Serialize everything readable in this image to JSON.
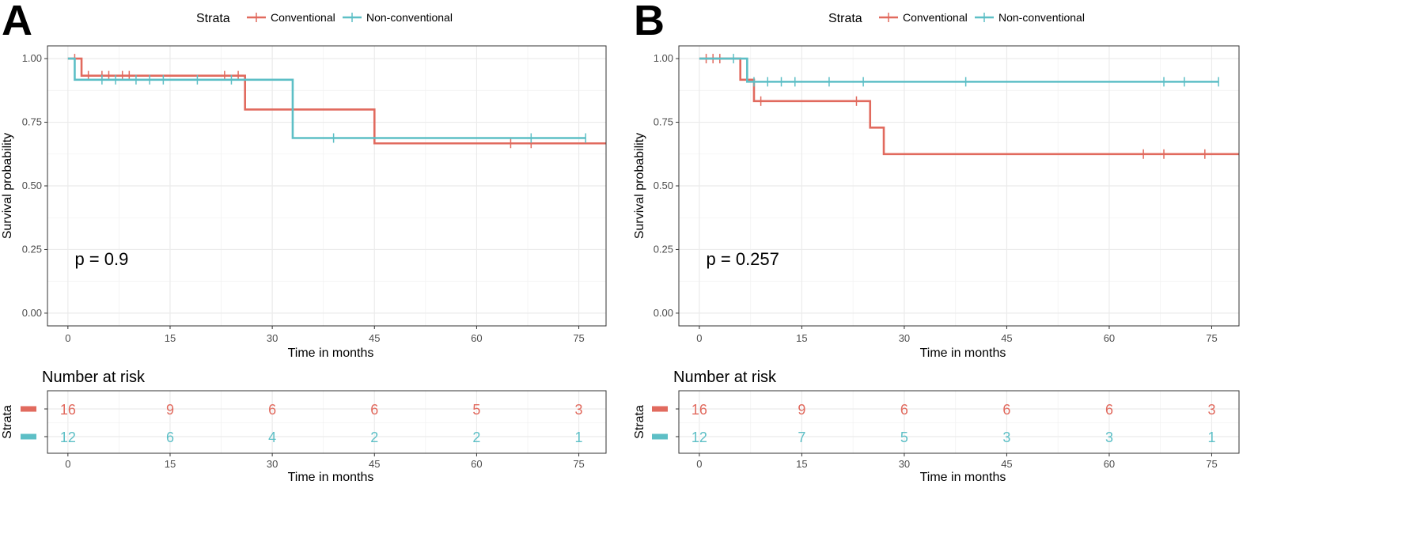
{
  "colors": {
    "conventional": "#E16A5E",
    "non_conventional": "#5DBFC6"
  },
  "chart_data": [
    {
      "type": "line",
      "panel_label": "A",
      "legend": {
        "title": "Strata",
        "entries": [
          "Conventional",
          "Non-conventional"
        ]
      },
      "xlabel": "Time in months",
      "ylabel": "Survival probability",
      "xlim": [
        -3,
        79
      ],
      "ylim": [
        -0.05,
        1.05
      ],
      "xticks": [
        "0",
        "15",
        "30",
        "45",
        "60",
        "75"
      ],
      "yticks": [
        "0.00",
        "0.25",
        "0.50",
        "0.75",
        "1.00"
      ],
      "grid": true,
      "p_value": "p = 0.9",
      "series": [
        {
          "name": "Conventional",
          "color_key": "conventional",
          "steps": [
            [
              0,
              1.0
            ],
            [
              2,
              0.933
            ],
            [
              26,
              0.8
            ],
            [
              45,
              0.667
            ],
            [
              79,
              0.667
            ]
          ],
          "censor": [
            [
              1,
              1.0
            ],
            [
              3,
              0.933
            ],
            [
              5,
              0.933
            ],
            [
              6,
              0.933
            ],
            [
              8,
              0.933
            ],
            [
              9,
              0.933
            ],
            [
              23,
              0.933
            ],
            [
              25,
              0.933
            ],
            [
              65,
              0.667
            ],
            [
              68,
              0.667
            ]
          ]
        },
        {
          "name": "Non-conventional",
          "color_key": "non_conventional",
          "steps": [
            [
              0,
              1.0
            ],
            [
              1,
              0.917
            ],
            [
              33,
              0.688
            ],
            [
              76,
              0.688
            ]
          ],
          "censor": [
            [
              5,
              0.917
            ],
            [
              7,
              0.917
            ],
            [
              10,
              0.917
            ],
            [
              12,
              0.917
            ],
            [
              14,
              0.917
            ],
            [
              19,
              0.917
            ],
            [
              24,
              0.917
            ],
            [
              39,
              0.688
            ],
            [
              68,
              0.688
            ],
            [
              76,
              0.688
            ]
          ]
        }
      ],
      "risk_table": {
        "title": "Number at risk",
        "strata_label": "Strata",
        "times": [
          "0",
          "15",
          "30",
          "45",
          "60",
          "75"
        ],
        "rows": [
          {
            "name": "Conventional",
            "color_key": "conventional",
            "values": [
              "16",
              "9",
              "6",
              "6",
              "5",
              "3"
            ]
          },
          {
            "name": "Non-conventional",
            "color_key": "non_conventional",
            "values": [
              "12",
              "6",
              "4",
              "2",
              "2",
              "1"
            ]
          }
        ],
        "xlabel": "Time in months"
      }
    },
    {
      "type": "line",
      "panel_label": "B",
      "legend": {
        "title": "Strata",
        "entries": [
          "Conventional",
          "Non-conventional"
        ]
      },
      "xlabel": "Time in months",
      "ylabel": "Survival probability",
      "xlim": [
        -3,
        79
      ],
      "ylim": [
        -0.05,
        1.05
      ],
      "xticks": [
        "0",
        "15",
        "30",
        "45",
        "60",
        "75"
      ],
      "yticks": [
        "0.00",
        "0.25",
        "0.50",
        "0.75",
        "1.00"
      ],
      "grid": true,
      "p_value": "p = 0.257",
      "series": [
        {
          "name": "Conventional",
          "color_key": "conventional",
          "steps": [
            [
              0,
              1.0
            ],
            [
              6,
              0.917
            ],
            [
              8,
              0.833
            ],
            [
              25,
              0.729
            ],
            [
              27,
              0.625
            ],
            [
              79,
              0.625
            ]
          ],
          "censor": [
            [
              1,
              1.0
            ],
            [
              2,
              1.0
            ],
            [
              3,
              1.0
            ],
            [
              9,
              0.833
            ],
            [
              23,
              0.833
            ],
            [
              65,
              0.625
            ],
            [
              68,
              0.625
            ],
            [
              74,
              0.625
            ]
          ]
        },
        {
          "name": "Non-conventional",
          "color_key": "non_conventional",
          "steps": [
            [
              0,
              1.0
            ],
            [
              7,
              0.909
            ],
            [
              76,
              0.909
            ]
          ],
          "censor": [
            [
              5,
              1.0
            ],
            [
              8,
              0.909
            ],
            [
              10,
              0.909
            ],
            [
              12,
              0.909
            ],
            [
              14,
              0.909
            ],
            [
              19,
              0.909
            ],
            [
              24,
              0.909
            ],
            [
              39,
              0.909
            ],
            [
              68,
              0.909
            ],
            [
              71,
              0.909
            ],
            [
              76,
              0.909
            ]
          ]
        }
      ],
      "risk_table": {
        "title": "Number at risk",
        "strata_label": "Strata",
        "times": [
          "0",
          "15",
          "30",
          "45",
          "60",
          "75"
        ],
        "rows": [
          {
            "name": "Conventional",
            "color_key": "conventional",
            "values": [
              "16",
              "9",
              "6",
              "6",
              "6",
              "3"
            ]
          },
          {
            "name": "Non-conventional",
            "color_key": "non_conventional",
            "values": [
              "12",
              "7",
              "5",
              "3",
              "3",
              "1"
            ]
          }
        ],
        "xlabel": "Time in months"
      }
    }
  ]
}
